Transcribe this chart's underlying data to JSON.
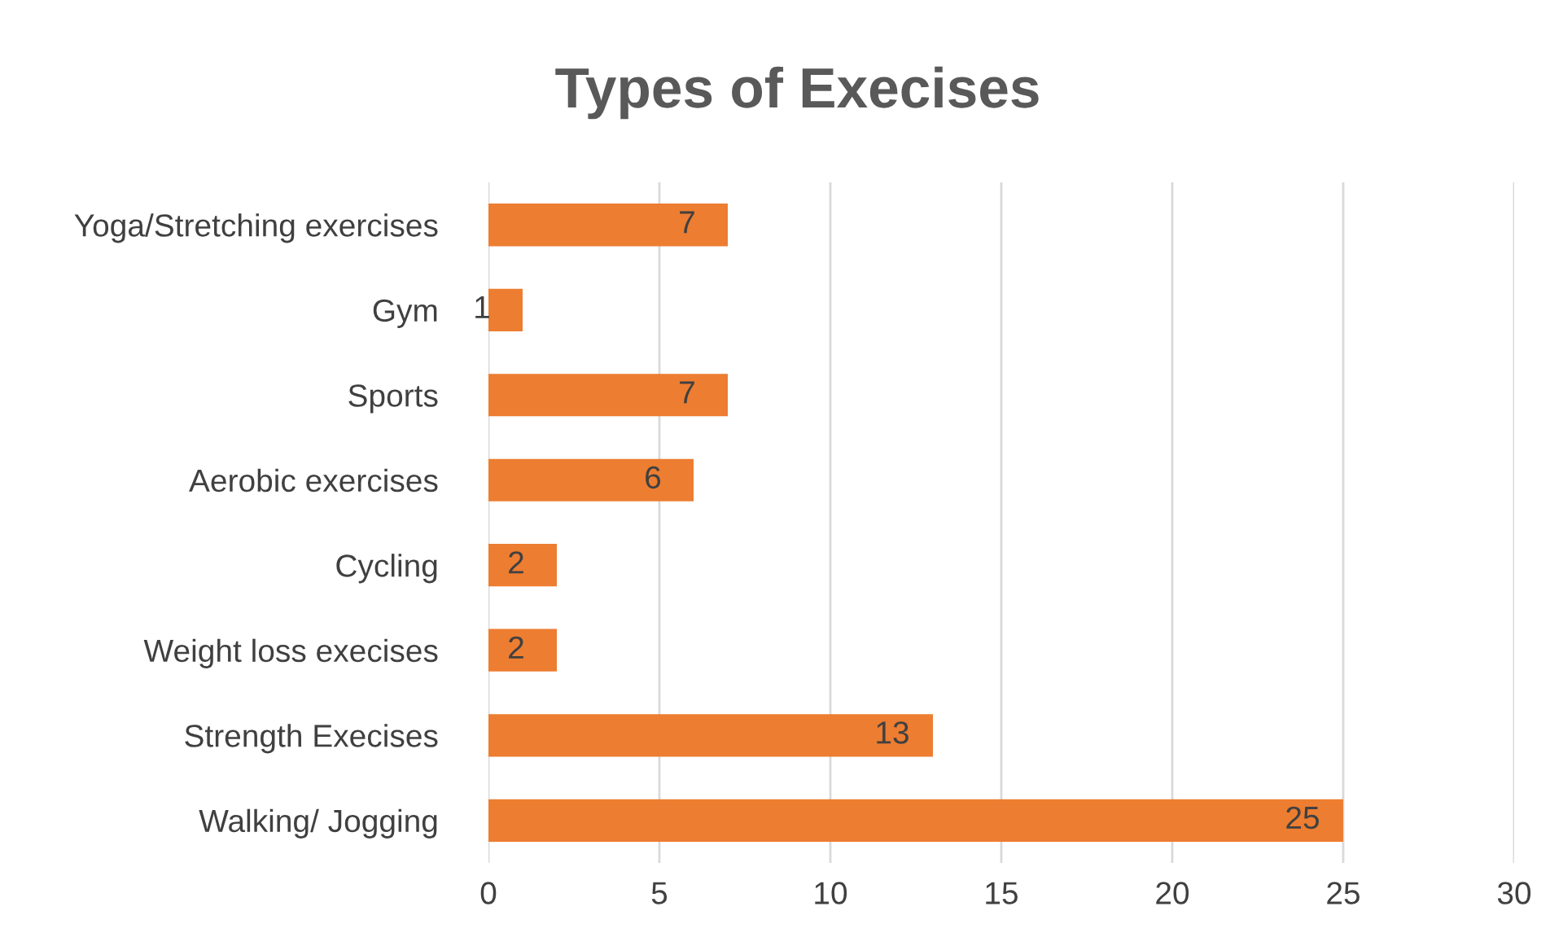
{
  "chart_data": {
    "type": "bar",
    "orientation": "horizontal",
    "title": "Types of Execises",
    "categories": [
      "Yoga/Stretching exercises",
      "Gym",
      "Sports",
      "Aerobic exercises",
      "Cycling",
      "Weight loss execises",
      "Strength Execises",
      "Walking/ Jogging"
    ],
    "values": [
      7,
      1,
      7,
      6,
      2,
      2,
      13,
      25
    ],
    "color": "#ed7d31",
    "xlim": [
      0,
      30
    ],
    "xticks": [
      0,
      5,
      10,
      15,
      20,
      25,
      30
    ],
    "grid": "x",
    "data_labels": true
  }
}
